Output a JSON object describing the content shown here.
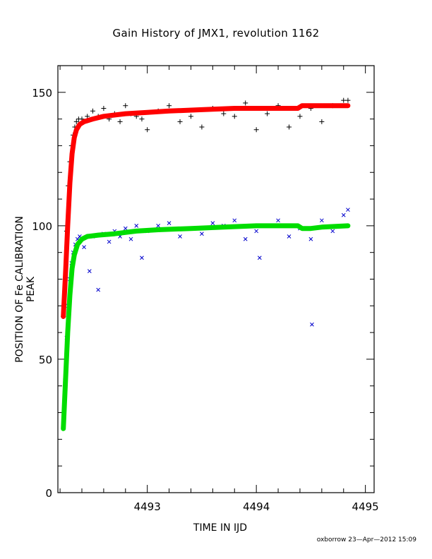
{
  "chart_data": {
    "type": "scatter",
    "title": "Gain History of JMX1, revolution 1162",
    "xlabel": "TIME IN IJD",
    "ylabel": "POSITION OF Fe CALIBRATION PEAK",
    "xlim": [
      4492.18,
      4495.08
    ],
    "ylim": [
      0,
      160
    ],
    "xticks": [
      4493,
      4494,
      4495
    ],
    "xtick_labels": [
      "4493",
      "4494",
      "4495"
    ],
    "yticks": [
      0,
      50,
      100,
      150
    ],
    "ytick_labels": [
      "0",
      "50",
      "100",
      "150"
    ],
    "grid": false,
    "legend": "none",
    "series": [
      {
        "marker": "plus",
        "color": "#000000",
        "kind": "measured",
        "x": [
          4492.23,
          4492.245,
          4492.26,
          4492.275,
          4492.29,
          4492.305,
          4492.32,
          4492.335,
          4492.35,
          4492.37,
          4492.4,
          4492.45,
          4492.5,
          4492.55,
          4492.6,
          4492.65,
          4492.7,
          4492.75,
          4492.8,
          4492.85,
          4492.9,
          4492.95,
          4493.0,
          4493.1,
          4493.2,
          4493.3,
          4493.4,
          4493.5,
          4493.6,
          4493.7,
          4493.8,
          4493.9,
          4494.0,
          4494.1,
          4494.2,
          4494.3,
          4494.4,
          4494.5,
          4494.6,
          4494.7,
          4494.8,
          4494.84
        ],
        "y": [
          66,
          80,
          98,
          115,
          124,
          130,
          134,
          137,
          139,
          140,
          140,
          141,
          143,
          141,
          144,
          140,
          142,
          139,
          145,
          142,
          141,
          140,
          136,
          143,
          145,
          139,
          141,
          137,
          144,
          142,
          141,
          146,
          136,
          142,
          145,
          137,
          141,
          144,
          139,
          145,
          147,
          147
        ]
      },
      {
        "marker": "line",
        "color": "#ff0000",
        "kind": "fit",
        "x": [
          4492.23,
          4492.25,
          4492.27,
          4492.29,
          4492.31,
          4492.33,
          4492.35,
          4492.38,
          4492.42,
          4492.5,
          4492.6,
          4492.8,
          4493.0,
          4493.2,
          4493.5,
          4493.8,
          4494.0,
          4494.2,
          4494.38,
          4494.42,
          4494.46,
          4494.6,
          4494.84
        ],
        "y": [
          66,
          82,
          100,
          116,
          127,
          133,
          136,
          138,
          139,
          140,
          141,
          142,
          142.5,
          143,
          143.5,
          144,
          144,
          144,
          144,
          145,
          145,
          145,
          145
        ]
      },
      {
        "marker": "cross",
        "color": "#0000cc",
        "kind": "measured",
        "x": [
          4492.23,
          4492.245,
          4492.26,
          4492.275,
          4492.29,
          4492.305,
          4492.32,
          4492.34,
          4492.36,
          4492.38,
          4492.42,
          4492.47,
          4492.5,
          4492.55,
          4492.6,
          4492.65,
          4492.7,
          4492.75,
          4492.8,
          4492.85,
          4492.9,
          4492.95,
          4493.0,
          4493.1,
          4493.2,
          4493.3,
          4493.4,
          4493.5,
          4493.6,
          4493.7,
          4493.8,
          4493.9,
          4494.0,
          4494.03,
          4494.1,
          4494.2,
          4494.3,
          4494.4,
          4494.5,
          4494.51,
          4494.6,
          4494.7,
          4494.8,
          4494.84
        ],
        "y": [
          27,
          42,
          58,
          70,
          80,
          86,
          90,
          93,
          95,
          96,
          92,
          83,
          96,
          76,
          97,
          94,
          98,
          96,
          99,
          95,
          100,
          88,
          98,
          100,
          101,
          96,
          99,
          97,
          101,
          100,
          102,
          95,
          98,
          88,
          100,
          102,
          96,
          99,
          95,
          63,
          102,
          98,
          104,
          106
        ]
      },
      {
        "marker": "line",
        "color": "#00dd00",
        "kind": "fit",
        "x": [
          4492.23,
          4492.25,
          4492.27,
          4492.29,
          4492.31,
          4492.33,
          4492.36,
          4492.4,
          4492.45,
          4492.55,
          4492.7,
          4492.9,
          4493.1,
          4493.4,
          4493.7,
          4494.0,
          4494.3,
          4494.38,
          4494.42,
          4494.5,
          4494.6,
          4494.84
        ],
        "y": [
          24,
          42,
          60,
          74,
          84,
          89,
          93,
          95,
          96,
          96.5,
          97,
          98,
          98.5,
          99,
          99.5,
          100,
          100,
          100,
          99,
          99,
          99.5,
          100
        ]
      }
    ],
    "footer": "oxborrow 23—Apr—2012 15:09"
  }
}
